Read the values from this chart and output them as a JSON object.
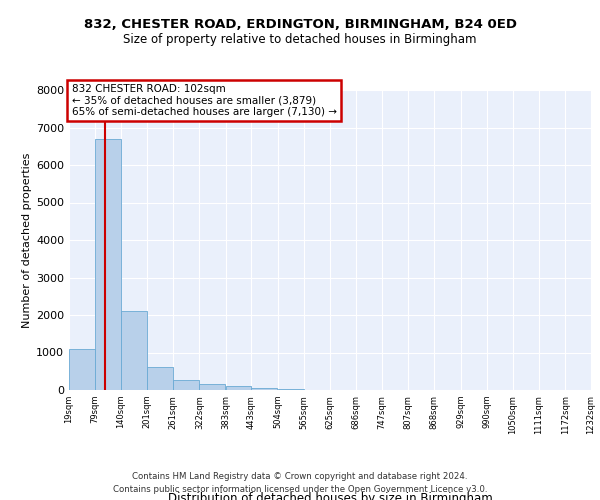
{
  "title": "832, CHESTER ROAD, ERDINGTON, BIRMINGHAM, B24 0ED",
  "subtitle": "Size of property relative to detached houses in Birmingham",
  "xlabel": "Distribution of detached houses by size in Birmingham",
  "ylabel": "Number of detached properties",
  "property_size": 102,
  "annotation_line1": "832 CHESTER ROAD: 102sqm",
  "annotation_line2": "← 35% of detached houses are smaller (3,879)",
  "annotation_line3": "65% of semi-detached houses are larger (7,130) →",
  "footer1": "Contains HM Land Registry data © Crown copyright and database right 2024.",
  "footer2": "Contains public sector information licensed under the Open Government Licence v3.0.",
  "bin_edges": [
    19,
    79,
    140,
    201,
    261,
    322,
    383,
    443,
    504,
    565,
    625,
    686,
    747,
    807,
    868,
    929,
    990,
    1050,
    1111,
    1172,
    1232
  ],
  "bar_heights": [
    1100,
    6700,
    2100,
    620,
    270,
    160,
    115,
    65,
    30,
    10,
    5,
    3,
    2,
    1,
    1,
    0,
    0,
    0,
    0,
    0
  ],
  "bar_color": "#b8d0ea",
  "bar_edge_color": "#6aaad4",
  "vline_color": "#cc0000",
  "annotation_box_edgecolor": "#cc0000",
  "grid_color": "#ffffff",
  "background_color": "#eaf0fb",
  "ylim": [
    0,
    8000
  ],
  "yticks": [
    0,
    1000,
    2000,
    3000,
    4000,
    5000,
    6000,
    7000,
    8000
  ],
  "ytick_labels": [
    "0",
    "1000",
    "2000",
    "3000",
    "4000",
    "5000",
    "6000",
    "7000",
    "8000"
  ]
}
